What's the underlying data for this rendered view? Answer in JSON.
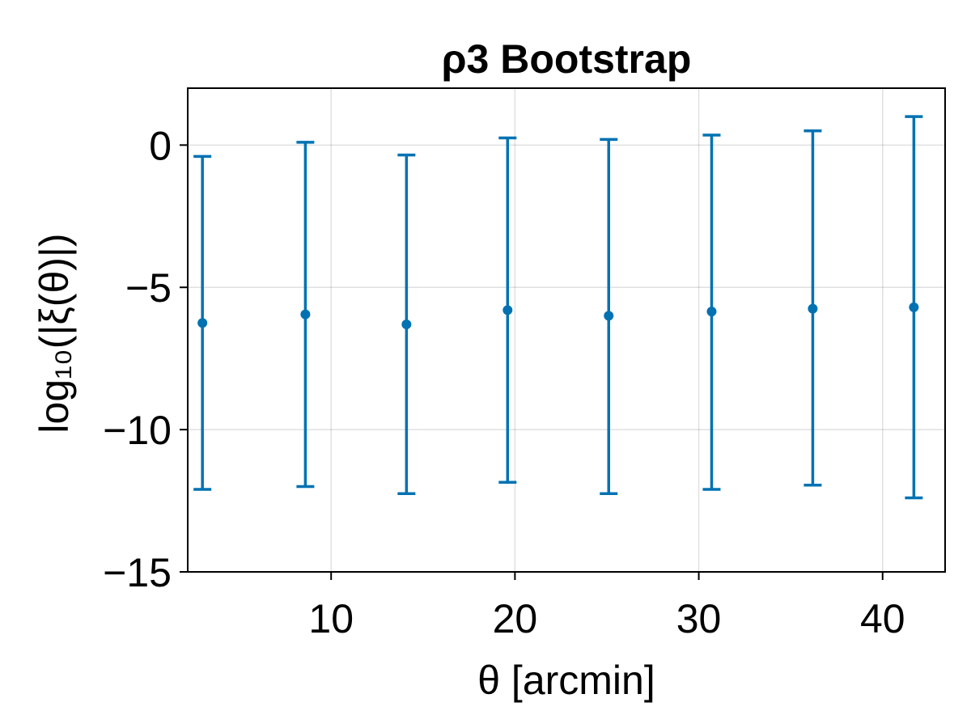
{
  "chart_data": {
    "type": "scatter",
    "title": "ρ3 Bootstrap",
    "xlabel": "θ [arcmin]",
    "ylabel": "log₁₀(|ξ(θ)|)",
    "xlim": [
      2.2,
      43.4
    ],
    "ylim": [
      -15,
      2
    ],
    "xticks": [
      10,
      20,
      30,
      40
    ],
    "xtick_labels": [
      "10",
      "20",
      "30",
      "40"
    ],
    "yticks": [
      0,
      -5,
      -10,
      -15
    ],
    "ytick_labels": [
      "0",
      "−5",
      "−10",
      "−15"
    ],
    "grid": true,
    "color": "#0072b2",
    "series": [
      {
        "x": [
          3.0,
          8.6,
          14.1,
          19.6,
          25.1,
          30.7,
          36.2,
          41.7
        ],
        "y": [
          -6.25,
          -5.95,
          -6.3,
          -5.8,
          -6.0,
          -5.85,
          -5.75,
          -5.7
        ],
        "yerr_low": [
          -12.1,
          -12.0,
          -12.25,
          -11.85,
          -12.25,
          -12.1,
          -11.95,
          -12.4
        ],
        "yerr_high": [
          -0.4,
          0.1,
          -0.35,
          0.25,
          0.2,
          0.35,
          0.5,
          1.0
        ]
      }
    ]
  }
}
